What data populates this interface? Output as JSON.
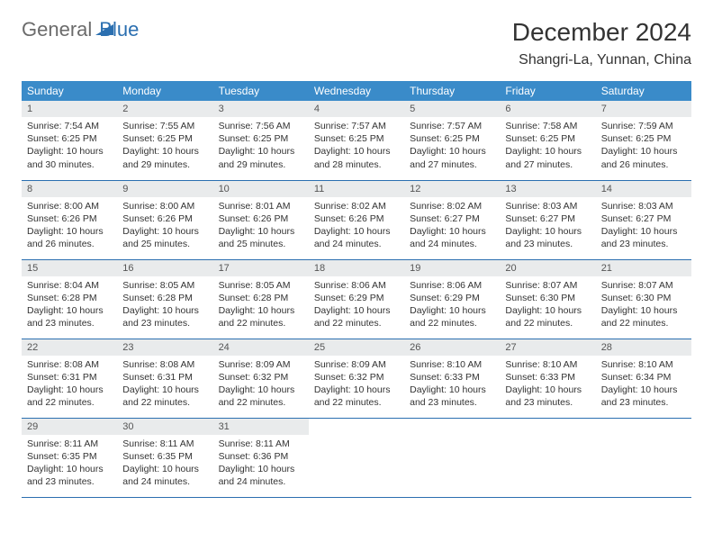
{
  "brand": {
    "general": "General",
    "blue": "Blue"
  },
  "title": "December 2024",
  "location": "Shangri-La, Yunnan, China",
  "colors": {
    "header_bg": "#3a8bc9",
    "header_text": "#ffffff",
    "daynum_bg": "#e9ebec",
    "border": "#2b6fb0",
    "brand_gray": "#6b6b6b",
    "brand_blue": "#2b6fb0"
  },
  "weekdays": [
    "Sunday",
    "Monday",
    "Tuesday",
    "Wednesday",
    "Thursday",
    "Friday",
    "Saturday"
  ],
  "days": [
    {
      "n": 1,
      "sunrise": "7:54 AM",
      "sunset": "6:25 PM",
      "daylight": "10 hours and 30 minutes."
    },
    {
      "n": 2,
      "sunrise": "7:55 AM",
      "sunset": "6:25 PM",
      "daylight": "10 hours and 29 minutes."
    },
    {
      "n": 3,
      "sunrise": "7:56 AM",
      "sunset": "6:25 PM",
      "daylight": "10 hours and 29 minutes."
    },
    {
      "n": 4,
      "sunrise": "7:57 AM",
      "sunset": "6:25 PM",
      "daylight": "10 hours and 28 minutes."
    },
    {
      "n": 5,
      "sunrise": "7:57 AM",
      "sunset": "6:25 PM",
      "daylight": "10 hours and 27 minutes."
    },
    {
      "n": 6,
      "sunrise": "7:58 AM",
      "sunset": "6:25 PM",
      "daylight": "10 hours and 27 minutes."
    },
    {
      "n": 7,
      "sunrise": "7:59 AM",
      "sunset": "6:25 PM",
      "daylight": "10 hours and 26 minutes."
    },
    {
      "n": 8,
      "sunrise": "8:00 AM",
      "sunset": "6:26 PM",
      "daylight": "10 hours and 26 minutes."
    },
    {
      "n": 9,
      "sunrise": "8:00 AM",
      "sunset": "6:26 PM",
      "daylight": "10 hours and 25 minutes."
    },
    {
      "n": 10,
      "sunrise": "8:01 AM",
      "sunset": "6:26 PM",
      "daylight": "10 hours and 25 minutes."
    },
    {
      "n": 11,
      "sunrise": "8:02 AM",
      "sunset": "6:26 PM",
      "daylight": "10 hours and 24 minutes."
    },
    {
      "n": 12,
      "sunrise": "8:02 AM",
      "sunset": "6:27 PM",
      "daylight": "10 hours and 24 minutes."
    },
    {
      "n": 13,
      "sunrise": "8:03 AM",
      "sunset": "6:27 PM",
      "daylight": "10 hours and 23 minutes."
    },
    {
      "n": 14,
      "sunrise": "8:03 AM",
      "sunset": "6:27 PM",
      "daylight": "10 hours and 23 minutes."
    },
    {
      "n": 15,
      "sunrise": "8:04 AM",
      "sunset": "6:28 PM",
      "daylight": "10 hours and 23 minutes."
    },
    {
      "n": 16,
      "sunrise": "8:05 AM",
      "sunset": "6:28 PM",
      "daylight": "10 hours and 23 minutes."
    },
    {
      "n": 17,
      "sunrise": "8:05 AM",
      "sunset": "6:28 PM",
      "daylight": "10 hours and 22 minutes."
    },
    {
      "n": 18,
      "sunrise": "8:06 AM",
      "sunset": "6:29 PM",
      "daylight": "10 hours and 22 minutes."
    },
    {
      "n": 19,
      "sunrise": "8:06 AM",
      "sunset": "6:29 PM",
      "daylight": "10 hours and 22 minutes."
    },
    {
      "n": 20,
      "sunrise": "8:07 AM",
      "sunset": "6:30 PM",
      "daylight": "10 hours and 22 minutes."
    },
    {
      "n": 21,
      "sunrise": "8:07 AM",
      "sunset": "6:30 PM",
      "daylight": "10 hours and 22 minutes."
    },
    {
      "n": 22,
      "sunrise": "8:08 AM",
      "sunset": "6:31 PM",
      "daylight": "10 hours and 22 minutes."
    },
    {
      "n": 23,
      "sunrise": "8:08 AM",
      "sunset": "6:31 PM",
      "daylight": "10 hours and 22 minutes."
    },
    {
      "n": 24,
      "sunrise": "8:09 AM",
      "sunset": "6:32 PM",
      "daylight": "10 hours and 22 minutes."
    },
    {
      "n": 25,
      "sunrise": "8:09 AM",
      "sunset": "6:32 PM",
      "daylight": "10 hours and 22 minutes."
    },
    {
      "n": 26,
      "sunrise": "8:10 AM",
      "sunset": "6:33 PM",
      "daylight": "10 hours and 23 minutes."
    },
    {
      "n": 27,
      "sunrise": "8:10 AM",
      "sunset": "6:33 PM",
      "daylight": "10 hours and 23 minutes."
    },
    {
      "n": 28,
      "sunrise": "8:10 AM",
      "sunset": "6:34 PM",
      "daylight": "10 hours and 23 minutes."
    },
    {
      "n": 29,
      "sunrise": "8:11 AM",
      "sunset": "6:35 PM",
      "daylight": "10 hours and 23 minutes."
    },
    {
      "n": 30,
      "sunrise": "8:11 AM",
      "sunset": "6:35 PM",
      "daylight": "10 hours and 24 minutes."
    },
    {
      "n": 31,
      "sunrise": "8:11 AM",
      "sunset": "6:36 PM",
      "daylight": "10 hours and 24 minutes."
    }
  ],
  "labels": {
    "sunrise": "Sunrise:",
    "sunset": "Sunset:",
    "daylight": "Daylight:"
  },
  "layout": {
    "start_weekday": 0,
    "total_cells": 35
  }
}
